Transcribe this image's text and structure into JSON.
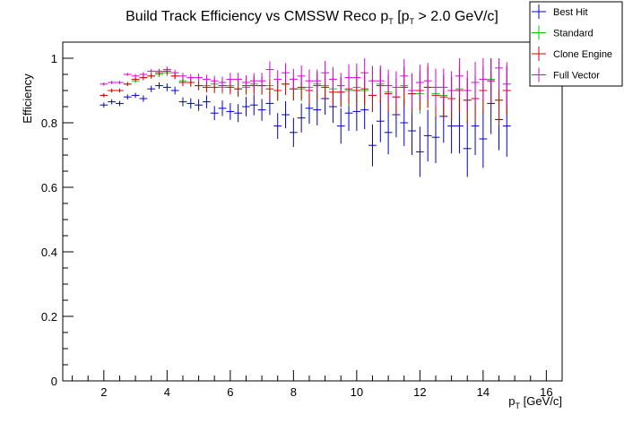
{
  "chart_data": {
    "type": "scatter",
    "title": {
      "prefix": "Build Track Efficiency vs CMSSW Reco p",
      "sub1": "T",
      "mid": " [p",
      "sub2": "T",
      "suffix": " > 2.0 GeV/c]"
    },
    "xlabel": {
      "main": "p",
      "sub": "T",
      "unit": " [GeV/c]"
    },
    "ylabel": "Efficiency",
    "xlim": [
      0.7,
      16.5
    ],
    "ylim": [
      0,
      1.05
    ],
    "xticks": [
      "2",
      "4",
      "6",
      "8",
      "10",
      "12",
      "14",
      "16"
    ],
    "yticks": [
      "0",
      "0.2",
      "0.4",
      "0.6",
      "0.8",
      "1"
    ],
    "bin_width": 0.25,
    "legend_position": "top-right",
    "series": [
      {
        "name": "Best Hit",
        "color": "#0000cc",
        "x": [
          2.0,
          2.25,
          2.5,
          2.75,
          3.0,
          3.25,
          3.5,
          3.75,
          4.0,
          4.25,
          4.5,
          4.75,
          5.0,
          5.25,
          5.5,
          5.75,
          6.0,
          6.25,
          6.5,
          6.75,
          7.0,
          7.25,
          7.5,
          7.75,
          8.0,
          8.25,
          8.5,
          8.75,
          9.0,
          9.25,
          9.5,
          9.75,
          10.0,
          10.25,
          10.5,
          10.75,
          11.0,
          11.25,
          11.5,
          11.75,
          12.0,
          12.25,
          12.5,
          12.75,
          13.0,
          13.25,
          13.5,
          13.75,
          14.0,
          14.25,
          14.5,
          14.75
        ],
        "y": [
          0.855,
          0.865,
          0.86,
          0.88,
          0.885,
          0.875,
          0.905,
          0.915,
          0.91,
          0.9,
          0.865,
          0.86,
          0.855,
          0.865,
          0.83,
          0.845,
          0.835,
          0.83,
          0.85,
          0.855,
          0.84,
          0.86,
          0.79,
          0.825,
          0.77,
          0.815,
          0.845,
          0.84,
          0.875,
          0.85,
          0.79,
          0.83,
          0.835,
          0.84,
          0.73,
          0.805,
          0.77,
          0.825,
          0.8,
          0.775,
          0.71,
          0.76,
          0.755,
          0.82,
          0.79,
          0.79,
          0.72,
          0.79,
          0.75,
          0.86,
          0.81,
          0.79
        ],
        "err": [
          0.008,
          0.008,
          0.008,
          0.008,
          0.008,
          0.01,
          0.01,
          0.01,
          0.012,
          0.012,
          0.014,
          0.016,
          0.018,
          0.02,
          0.022,
          0.024,
          0.026,
          0.028,
          0.03,
          0.032,
          0.034,
          0.036,
          0.04,
          0.042,
          0.045,
          0.045,
          0.048,
          0.048,
          0.05,
          0.05,
          0.055,
          0.055,
          0.06,
          0.06,
          0.065,
          0.065,
          0.068,
          0.07,
          0.072,
          0.075,
          0.078,
          0.08,
          0.08,
          0.082,
          0.085,
          0.085,
          0.088,
          0.09,
          0.09,
          0.095,
          0.095,
          0.095
        ]
      },
      {
        "name": "Standard",
        "color": "#00cc00",
        "x": [
          2.0,
          2.25,
          2.5,
          2.75,
          3.0,
          3.25,
          3.5,
          3.75,
          4.0,
          4.25,
          4.5,
          4.75,
          5.0,
          5.25,
          5.5,
          5.75,
          6.0,
          6.25,
          6.5,
          6.75,
          7.0,
          7.25,
          7.5,
          7.75,
          8.0,
          8.25,
          8.5,
          8.75,
          9.0,
          9.25,
          9.5,
          9.75,
          10.0,
          10.25,
          10.5,
          10.75,
          11.0,
          11.25,
          11.5,
          11.75,
          12.0,
          12.25,
          12.5,
          12.75,
          13.0,
          13.25,
          13.5,
          13.75,
          14.0,
          14.25,
          14.5,
          14.75
        ],
        "y": [
          0.885,
          0.9,
          0.9,
          0.92,
          0.93,
          0.94,
          0.945,
          0.95,
          0.955,
          0.945,
          0.93,
          0.925,
          0.915,
          0.915,
          0.92,
          0.91,
          0.915,
          0.905,
          0.91,
          0.92,
          0.915,
          0.915,
          0.9,
          0.92,
          0.905,
          0.905,
          0.91,
          0.92,
          0.915,
          0.905,
          0.895,
          0.9,
          0.91,
          0.9,
          0.885,
          0.92,
          0.895,
          0.88,
          0.915,
          0.89,
          0.89,
          0.91,
          0.89,
          0.885,
          0.875,
          0.905,
          0.87,
          0.875,
          0.9,
          0.935,
          0.87,
          0.9
        ],
        "err": [
          0.006,
          0.006,
          0.006,
          0.006,
          0.007,
          0.008,
          0.008,
          0.008,
          0.01,
          0.01,
          0.012,
          0.013,
          0.014,
          0.016,
          0.018,
          0.02,
          0.022,
          0.024,
          0.025,
          0.027,
          0.028,
          0.03,
          0.032,
          0.034,
          0.036,
          0.038,
          0.04,
          0.04,
          0.042,
          0.044,
          0.046,
          0.048,
          0.05,
          0.05,
          0.052,
          0.054,
          0.056,
          0.058,
          0.06,
          0.06,
          0.062,
          0.064,
          0.066,
          0.066,
          0.068,
          0.07,
          0.07,
          0.072,
          0.074,
          0.074,
          0.076,
          0.076
        ]
      },
      {
        "name": "Clone Engine",
        "color": "#dd0000",
        "x": [
          2.0,
          2.25,
          2.5,
          2.75,
          3.0,
          3.25,
          3.5,
          3.75,
          4.0,
          4.25,
          4.5,
          4.75,
          5.0,
          5.25,
          5.5,
          5.75,
          6.0,
          6.25,
          6.5,
          6.75,
          7.0,
          7.25,
          7.5,
          7.75,
          8.0,
          8.25,
          8.5,
          8.75,
          9.0,
          9.25,
          9.5,
          9.75,
          10.0,
          10.25,
          10.5,
          10.75,
          11.0,
          11.25,
          11.5,
          11.75,
          12.0,
          12.25,
          12.5,
          12.75,
          13.0,
          13.25,
          13.5,
          13.75,
          14.0,
          14.25,
          14.5,
          14.75
        ],
        "y": [
          0.885,
          0.9,
          0.9,
          0.92,
          0.935,
          0.94,
          0.945,
          0.955,
          0.96,
          0.945,
          0.925,
          0.925,
          0.915,
          0.91,
          0.91,
          0.915,
          0.91,
          0.905,
          0.915,
          0.915,
          0.915,
          0.905,
          0.9,
          0.92,
          0.905,
          0.91,
          0.9,
          0.915,
          0.91,
          0.895,
          0.895,
          0.905,
          0.9,
          0.905,
          0.885,
          0.915,
          0.89,
          0.88,
          0.91,
          0.89,
          0.9,
          0.91,
          0.885,
          0.88,
          0.875,
          0.9,
          0.87,
          0.875,
          0.9,
          0.93,
          0.87,
          0.9
        ],
        "err": [
          0.006,
          0.006,
          0.006,
          0.006,
          0.007,
          0.008,
          0.008,
          0.008,
          0.01,
          0.01,
          0.012,
          0.013,
          0.014,
          0.016,
          0.018,
          0.02,
          0.022,
          0.024,
          0.025,
          0.027,
          0.028,
          0.03,
          0.032,
          0.034,
          0.036,
          0.038,
          0.04,
          0.04,
          0.042,
          0.044,
          0.046,
          0.048,
          0.05,
          0.05,
          0.052,
          0.054,
          0.056,
          0.058,
          0.06,
          0.06,
          0.062,
          0.064,
          0.066,
          0.066,
          0.068,
          0.07,
          0.07,
          0.072,
          0.074,
          0.074,
          0.076,
          0.076
        ]
      },
      {
        "name": "Full Vector",
        "color": "#dd00dd",
        "x": [
          2.0,
          2.25,
          2.5,
          2.75,
          3.0,
          3.25,
          3.5,
          3.75,
          4.0,
          4.25,
          4.5,
          4.75,
          5.0,
          5.25,
          5.5,
          5.75,
          6.0,
          6.25,
          6.5,
          6.75,
          7.0,
          7.25,
          7.5,
          7.75,
          8.0,
          8.25,
          8.5,
          8.75,
          9.0,
          9.25,
          9.5,
          9.75,
          10.0,
          10.25,
          10.5,
          10.75,
          11.0,
          11.25,
          11.5,
          11.75,
          12.0,
          12.25,
          12.5,
          12.75,
          13.0,
          13.25,
          13.5,
          13.75,
          14.0,
          14.25,
          14.5,
          14.75
        ],
        "y": [
          0.92,
          0.925,
          0.925,
          0.95,
          0.945,
          0.95,
          0.96,
          0.96,
          0.965,
          0.955,
          0.945,
          0.94,
          0.94,
          0.935,
          0.93,
          0.925,
          0.935,
          0.935,
          0.925,
          0.93,
          0.93,
          0.965,
          0.935,
          0.955,
          0.935,
          0.945,
          0.93,
          0.93,
          0.955,
          0.935,
          0.915,
          0.94,
          0.94,
          0.955,
          0.93,
          0.93,
          0.915,
          0.91,
          0.945,
          0.9,
          0.925,
          0.93,
          0.91,
          0.91,
          0.9,
          0.945,
          0.9,
          0.925,
          0.935,
          0.93,
          0.97,
          0.92
        ],
        "err": [
          0.005,
          0.005,
          0.005,
          0.005,
          0.006,
          0.007,
          0.007,
          0.007,
          0.009,
          0.009,
          0.01,
          0.011,
          0.012,
          0.014,
          0.016,
          0.018,
          0.02,
          0.02,
          0.022,
          0.024,
          0.025,
          0.026,
          0.028,
          0.03,
          0.032,
          0.033,
          0.035,
          0.035,
          0.037,
          0.038,
          0.04,
          0.042,
          0.044,
          0.045,
          0.046,
          0.048,
          0.05,
          0.05,
          0.052,
          0.054,
          0.055,
          0.056,
          0.058,
          0.058,
          0.06,
          0.062,
          0.062,
          0.064,
          0.066,
          0.066,
          0.068,
          0.068
        ]
      }
    ]
  }
}
